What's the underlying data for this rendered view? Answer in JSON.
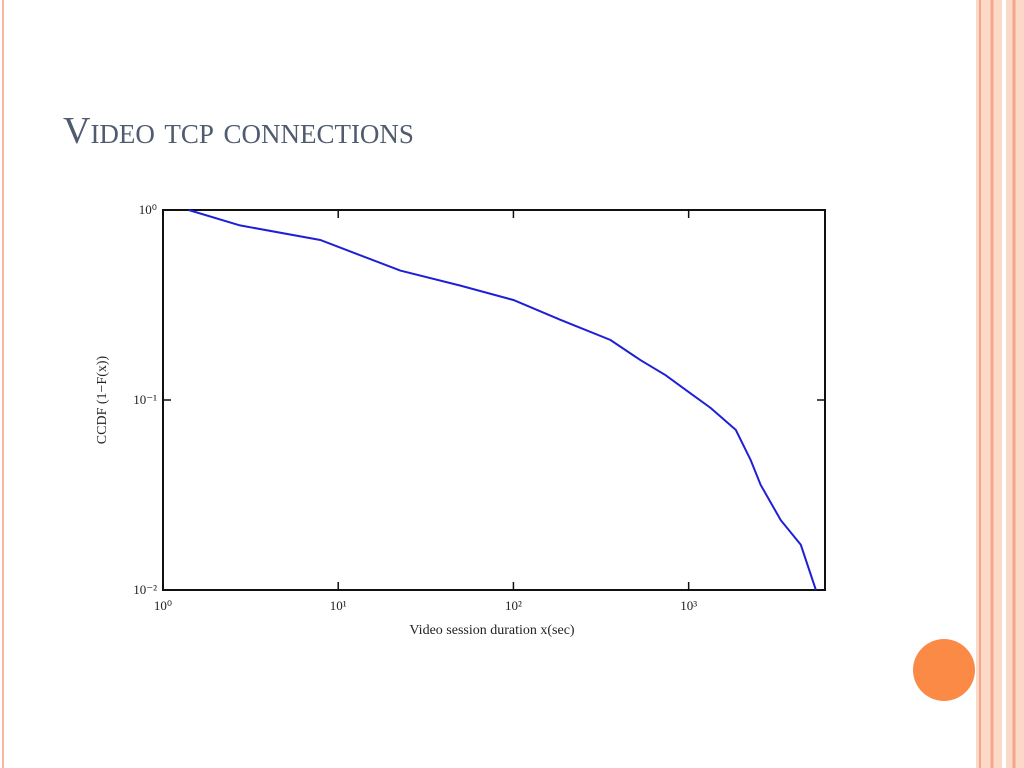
{
  "slide_title": "Video tcp connections",
  "chart_data": {
    "type": "line",
    "xlabel": "Video session duration x(sec)",
    "ylabel": "CCDF (1−F(x))",
    "x": [
      1.4,
      2.75,
      7.9,
      22.6,
      49.8,
      100,
      186,
      358,
      532,
      739,
      1000,
      1336,
      1857,
      2261,
      2578,
      3357,
      4365,
      5321
    ],
    "values": [
      1.0,
      0.83,
      0.695,
      0.48,
      0.4,
      0.336,
      0.264,
      0.207,
      0.162,
      0.135,
      0.11,
      0.0908,
      0.0696,
      0.0483,
      0.0357,
      0.0233,
      0.0173,
      0.01
    ],
    "color": "#1f1fd6",
    "xscale": "log",
    "yscale": "log",
    "xlim": [
      1,
      6000
    ],
    "ylim": [
      0.01,
      1
    ],
    "xticks": [
      {
        "value": 1,
        "label": "10⁰"
      },
      {
        "value": 10,
        "label": "10¹"
      },
      {
        "value": 100,
        "label": "10²"
      },
      {
        "value": 1000,
        "label": "10³"
      }
    ],
    "yticks": [
      {
        "value": 0.01,
        "label": "10⁻²"
      },
      {
        "value": 0.1,
        "label": "10⁻¹"
      },
      {
        "value": 1,
        "label": "10⁰"
      }
    ]
  }
}
